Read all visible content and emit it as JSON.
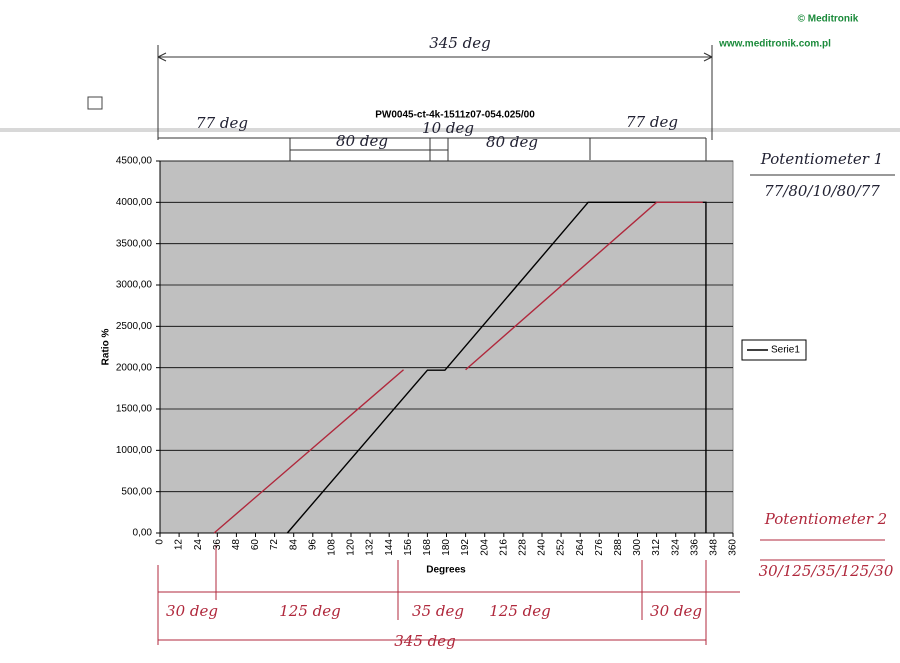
{
  "chart_data": {
    "type": "line",
    "title": "PW0045-ct-4k-1511z07-054.025/00",
    "copyright": "© Meditronik",
    "website": "www.meditronik.com.pl",
    "x_label": "Degrees",
    "y_label": "Ratio %",
    "xlim": [
      0,
      360
    ],
    "ylim": [
      0,
      4500
    ],
    "xticks": [
      0,
      12,
      24,
      36,
      48,
      60,
      72,
      84,
      96,
      108,
      120,
      132,
      144,
      156,
      168,
      180,
      192,
      204,
      216,
      228,
      240,
      252,
      264,
      276,
      288,
      300,
      312,
      324,
      336,
      348,
      360
    ],
    "yticks": [
      {
        "value": 0,
        "label": "0,00"
      },
      {
        "value": 500,
        "label": "500,00"
      },
      {
        "value": 1000,
        "label": "1000,00"
      },
      {
        "value": 1500,
        "label": "1500,00"
      },
      {
        "value": 2000,
        "label": "2000,00"
      },
      {
        "value": 2500,
        "label": "2500,00"
      },
      {
        "value": 3000,
        "label": "3000,00"
      },
      {
        "value": 3500,
        "label": "3500,00"
      },
      {
        "value": 4000,
        "label": "4000,00"
      },
      {
        "value": 4500,
        "label": "4500,00"
      }
    ],
    "grid": true,
    "legend": "right",
    "series": [
      {
        "name": "Serie1",
        "color": "#000000",
        "x": [
          80,
          168,
          179,
          269,
          343,
          343
        ],
        "values": [
          0,
          1970,
          1970,
          4000,
          4000,
          0
        ]
      },
      {
        "color": "#b0283c",
        "x": [
          34,
          153,
          170,
          192,
          312,
          341
        ],
        "values": [
          0,
          1975,
          null,
          1975,
          4000,
          4000
        ]
      }
    ],
    "annotations": [
      "345 deg",
      "77 deg",
      "80 deg",
      "10 deg",
      "80 deg",
      "77 deg",
      "Potentiometer 1",
      "77/80/10/80/77",
      "Potentiometer 2",
      "30/125/35/125/30",
      "30 deg",
      "125 deg",
      "35 deg",
      "125 deg",
      "30 deg",
      "345 deg"
    ]
  }
}
